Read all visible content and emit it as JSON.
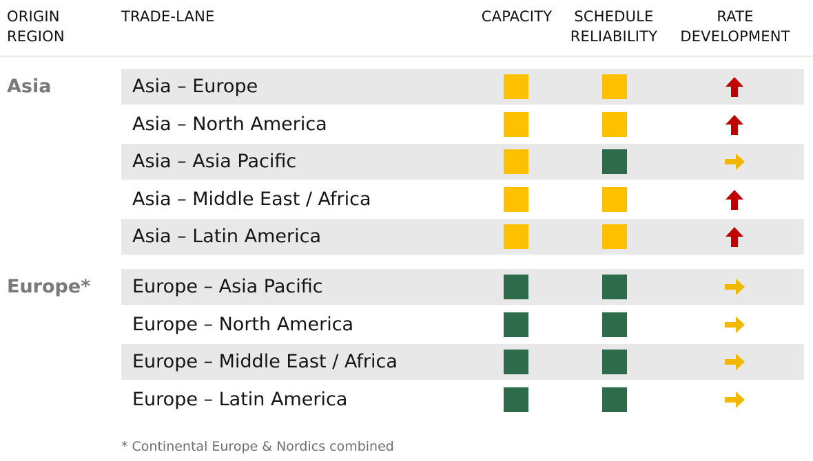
{
  "headers": {
    "origin_region": [
      "ORIGIN",
      "REGION"
    ],
    "trade_lane": "TRADE-LANE",
    "capacity": "CAPACITY",
    "schedule_reliability": [
      "SCHEDULE",
      "RELIABILITY"
    ],
    "rate_development": [
      "RATE",
      "DEVELOPMENT"
    ]
  },
  "colors": {
    "amber": "#ffc000",
    "green": "#2e6b4a",
    "arrow_up": "#c00000",
    "arrow_right": "#f2b800"
  },
  "regions": [
    {
      "name": "Asia",
      "lanes": [
        {
          "lane": "Asia – Europe",
          "capacity": "amber",
          "schedule": "amber",
          "rate": "up-arrow"
        },
        {
          "lane": "Asia – North America",
          "capacity": "amber",
          "schedule": "amber",
          "rate": "up-arrow"
        },
        {
          "lane": "Asia – Asia Pacific",
          "capacity": "amber",
          "schedule": "green",
          "rate": "right-arrow"
        },
        {
          "lane": "Asia – Middle East / Africa",
          "capacity": "amber",
          "schedule": "amber",
          "rate": "up-arrow"
        },
        {
          "lane": "Asia – Latin America",
          "capacity": "amber",
          "schedule": "amber",
          "rate": "up-arrow"
        }
      ]
    },
    {
      "name": "Europe*",
      "lanes": [
        {
          "lane": "Europe – Asia Pacific",
          "capacity": "green",
          "schedule": "green",
          "rate": "right-arrow"
        },
        {
          "lane": "Europe – North America",
          "capacity": "green",
          "schedule": "green",
          "rate": "right-arrow"
        },
        {
          "lane": "Europe – Middle East / Africa",
          "capacity": "green",
          "schedule": "green",
          "rate": "right-arrow"
        },
        {
          "lane": "Europe – Latin America",
          "capacity": "green",
          "schedule": "green",
          "rate": "right-arrow"
        }
      ]
    }
  ],
  "footnote": "* Continental Europe & Nordics combined"
}
